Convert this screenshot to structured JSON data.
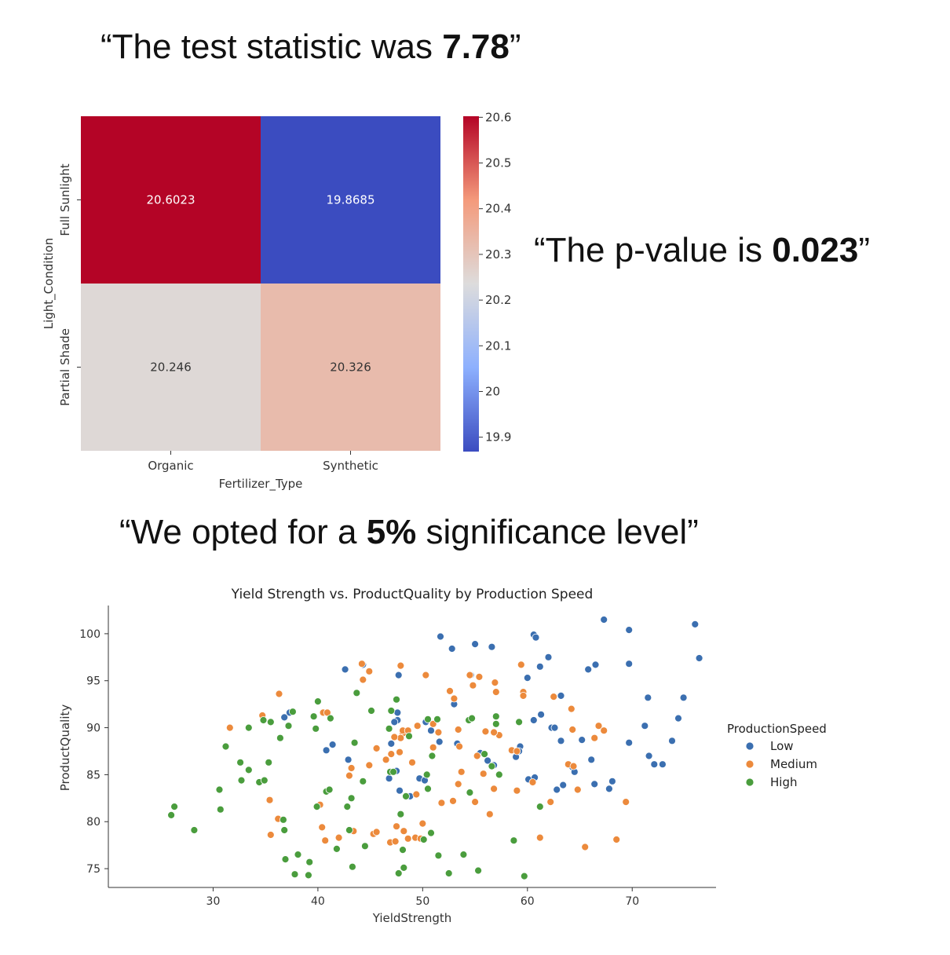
{
  "quotes": {
    "test_statistic": {
      "prefix": "“The test statistic was ",
      "value": "7.78",
      "suffix": "”"
    },
    "p_value": {
      "prefix": "“The p-value is ",
      "value": "0.023",
      "suffix": "”"
    },
    "significance": {
      "prefix": "“We opted for a ",
      "value": "5%",
      "suffix": " significance level”"
    }
  },
  "chart_data": [
    {
      "type": "heatmap",
      "title": "",
      "xlabel": "Fertilizer_Type",
      "ylabel": "Light_Condition",
      "x_categories": [
        "Organic",
        "Synthetic"
      ],
      "y_categories": [
        "Full Sunlight",
        "Partial Shade"
      ],
      "values": [
        [
          20.6023,
          19.8685
        ],
        [
          20.246,
          20.326
        ]
      ],
      "value_labels": [
        [
          "20.6023",
          "19.8685"
        ],
        [
          "20.246",
          "20.326"
        ]
      ],
      "colormap": "coolwarm",
      "colorbar": {
        "vmin": 19.8685,
        "vmax": 20.6023,
        "ticks": [
          19.9,
          20.0,
          20.1,
          20.2,
          20.3,
          20.4,
          20.5,
          20.6
        ]
      }
    },
    {
      "type": "scatter",
      "title": "Yield Strength vs. ProductQuality by Production Speed",
      "xlabel": "YieldStrength",
      "ylabel": "ProductQuality",
      "xlim": [
        20,
        78
      ],
      "ylim": [
        73,
        103
      ],
      "xticks": [
        30,
        40,
        50,
        60,
        70
      ],
      "yticks": [
        75,
        80,
        85,
        90,
        95,
        100
      ],
      "legend": {
        "title": "ProductionSpeed",
        "placement": "right-outside"
      },
      "series": [
        {
          "name": "Low",
          "color": "#3b6fb0",
          "points": [
            [
              42.6,
              96.2
            ],
            [
              44.3,
              96.7
            ],
            [
              47.7,
              95.6
            ],
            [
              51.7,
              99.7
            ],
            [
              52.8,
              98.4
            ],
            [
              54.6,
              95.6
            ],
            [
              55.0,
              98.9
            ],
            [
              56.6,
              98.6
            ],
            [
              60.6,
              99.9
            ],
            [
              60.8,
              99.6
            ],
            [
              61.2,
              96.5
            ],
            [
              62.0,
              97.5
            ],
            [
              60.0,
              95.3
            ],
            [
              65.8,
              96.2
            ],
            [
              66.5,
              96.7
            ],
            [
              67.3,
              101.5
            ],
            [
              69.7,
              100.4
            ],
            [
              69.7,
              96.8
            ],
            [
              76.0,
              101.0
            ],
            [
              76.4,
              97.4
            ],
            [
              71.5,
              93.2
            ],
            [
              74.9,
              93.2
            ],
            [
              74.4,
              91.0
            ],
            [
              71.2,
              90.2
            ],
            [
              73.8,
              88.6
            ],
            [
              69.7,
              88.4
            ],
            [
              71.6,
              87.0
            ],
            [
              72.1,
              86.1
            ],
            [
              72.9,
              86.1
            ],
            [
              66.1,
              86.6
            ],
            [
              68.1,
              84.3
            ],
            [
              67.8,
              83.5
            ],
            [
              66.4,
              84.0
            ],
            [
              64.3,
              85.8
            ],
            [
              64.5,
              85.3
            ],
            [
              63.4,
              83.9
            ],
            [
              62.8,
              83.4
            ],
            [
              63.2,
              93.4
            ],
            [
              61.3,
              91.4
            ],
            [
              60.6,
              90.8
            ],
            [
              62.3,
              90.0
            ],
            [
              62.6,
              90.0
            ],
            [
              63.2,
              88.6
            ],
            [
              65.2,
              88.7
            ],
            [
              59.3,
              88.0
            ],
            [
              58.9,
              86.9
            ],
            [
              59.2,
              87.5
            ],
            [
              56.8,
              86.0
            ],
            [
              56.2,
              86.5
            ],
            [
              55.5,
              87.3
            ],
            [
              60.1,
              84.5
            ],
            [
              60.7,
              84.7
            ],
            [
              53.3,
              88.3
            ],
            [
              51.6,
              88.5
            ],
            [
              50.8,
              89.7
            ],
            [
              50.3,
              90.6
            ],
            [
              53.0,
              92.5
            ],
            [
              47.6,
              91.6
            ],
            [
              47.6,
              90.8
            ],
            [
              47.3,
              90.6
            ],
            [
              47.0,
              88.3
            ],
            [
              46.8,
              84.6
            ],
            [
              47.5,
              85.4
            ],
            [
              47.8,
              83.3
            ],
            [
              48.8,
              82.7
            ],
            [
              49.7,
              84.6
            ],
            [
              50.2,
              84.4
            ],
            [
              42.9,
              86.6
            ],
            [
              40.8,
              87.6
            ],
            [
              41.4,
              88.2
            ],
            [
              36.8,
              91.1
            ],
            [
              37.3,
              91.6
            ]
          ]
        },
        {
          "name": "Medium",
          "color": "#ec8a3c",
          "points": [
            [
              44.2,
              96.8
            ],
            [
              44.3,
              95.1
            ],
            [
              44.9,
              96.0
            ],
            [
              47.9,
              96.6
            ],
            [
              50.3,
              95.6
            ],
            [
              52.6,
              93.9
            ],
            [
              53.0,
              93.1
            ],
            [
              54.5,
              95.6
            ],
            [
              54.8,
              94.5
            ],
            [
              55.4,
              95.4
            ],
            [
              56.9,
              94.8
            ],
            [
              57.0,
              93.8
            ],
            [
              59.4,
              96.7
            ],
            [
              59.6,
              93.8
            ],
            [
              59.6,
              93.4
            ],
            [
              62.5,
              93.3
            ],
            [
              64.2,
              92.0
            ],
            [
              64.3,
              89.8
            ],
            [
              66.4,
              88.9
            ],
            [
              66.8,
              90.2
            ],
            [
              67.3,
              89.7
            ],
            [
              58.5,
              87.6
            ],
            [
              59.0,
              87.5
            ],
            [
              57.3,
              89.2
            ],
            [
              56.8,
              89.5
            ],
            [
              56.0,
              89.6
            ],
            [
              55.2,
              87.0
            ],
            [
              53.5,
              88.0
            ],
            [
              53.4,
              89.8
            ],
            [
              51.5,
              89.5
            ],
            [
              51.0,
              90.4
            ],
            [
              51.0,
              87.9
            ],
            [
              49.5,
              90.2
            ],
            [
              48.1,
              89.4
            ],
            [
              48.1,
              89.7
            ],
            [
              47.9,
              88.9
            ],
            [
              48.6,
              89.7
            ],
            [
              47.3,
              89.0
            ],
            [
              47.8,
              87.4
            ],
            [
              47.0,
              87.2
            ],
            [
              46.5,
              86.6
            ],
            [
              45.6,
              87.8
            ],
            [
              44.9,
              86.0
            ],
            [
              43.2,
              85.7
            ],
            [
              43.0,
              84.9
            ],
            [
              40.5,
              91.6
            ],
            [
              40.9,
              91.6
            ],
            [
              40.2,
              81.8
            ],
            [
              40.4,
              79.4
            ],
            [
              40.7,
              78.0
            ],
            [
              42.0,
              78.3
            ],
            [
              43.4,
              79.0
            ],
            [
              45.3,
              78.7
            ],
            [
              45.6,
              78.9
            ],
            [
              46.9,
              77.8
            ],
            [
              47.4,
              77.9
            ],
            [
              47.5,
              79.5
            ],
            [
              48.2,
              79.0
            ],
            [
              48.6,
              78.2
            ],
            [
              49.3,
              78.3
            ],
            [
              49.8,
              78.2
            ],
            [
              50.0,
              79.8
            ],
            [
              49.4,
              82.9
            ],
            [
              49.0,
              86.3
            ],
            [
              51.8,
              82.0
            ],
            [
              52.9,
              82.2
            ],
            [
              53.4,
              84.0
            ],
            [
              53.7,
              85.3
            ],
            [
              55.0,
              82.1
            ],
            [
              55.8,
              85.1
            ],
            [
              56.4,
              80.8
            ],
            [
              56.8,
              83.5
            ],
            [
              59.0,
              83.3
            ],
            [
              60.5,
              84.2
            ],
            [
              61.2,
              78.3
            ],
            [
              62.2,
              82.1
            ],
            [
              63.9,
              86.1
            ],
            [
              64.4,
              85.9
            ],
            [
              64.8,
              83.4
            ],
            [
              65.5,
              77.3
            ],
            [
              68.5,
              78.1
            ],
            [
              69.4,
              82.1
            ],
            [
              35.4,
              82.3
            ],
            [
              35.5,
              78.6
            ],
            [
              36.2,
              80.3
            ],
            [
              34.7,
              91.3
            ],
            [
              36.3,
              93.6
            ],
            [
              31.6,
              90.0
            ]
          ]
        },
        {
          "name": "High",
          "color": "#4a9d3d",
          "points": [
            [
              26.0,
              80.7
            ],
            [
              26.3,
              81.6
            ],
            [
              28.2,
              79.1
            ],
            [
              30.6,
              83.4
            ],
            [
              30.7,
              81.3
            ],
            [
              31.2,
              88.0
            ],
            [
              32.6,
              86.3
            ],
            [
              32.7,
              84.4
            ],
            [
              33.4,
              90.0
            ],
            [
              33.4,
              85.5
            ],
            [
              34.4,
              84.2
            ],
            [
              34.9,
              84.4
            ],
            [
              34.8,
              90.8
            ],
            [
              35.3,
              86.3
            ],
            [
              35.5,
              90.6
            ],
            [
              36.4,
              88.9
            ],
            [
              36.7,
              80.2
            ],
            [
              36.8,
              79.1
            ],
            [
              37.2,
              90.2
            ],
            [
              37.6,
              91.7
            ],
            [
              36.9,
              76.0
            ],
            [
              38.1,
              76.5
            ],
            [
              37.8,
              74.4
            ],
            [
              39.1,
              74.3
            ],
            [
              39.2,
              75.7
            ],
            [
              39.6,
              91.2
            ],
            [
              39.8,
              89.9
            ],
            [
              40.0,
              92.8
            ],
            [
              39.9,
              81.6
            ],
            [
              40.8,
              83.2
            ],
            [
              41.1,
              83.4
            ],
            [
              41.2,
              91.0
            ],
            [
              41.8,
              77.1
            ],
            [
              42.8,
              81.6
            ],
            [
              43.0,
              79.1
            ],
            [
              43.2,
              82.5
            ],
            [
              43.3,
              75.2
            ],
            [
              43.5,
              88.4
            ],
            [
              43.7,
              93.7
            ],
            [
              44.3,
              84.3
            ],
            [
              44.5,
              77.4
            ],
            [
              45.1,
              91.8
            ],
            [
              46.8,
              89.9
            ],
            [
              46.9,
              85.3
            ],
            [
              47.0,
              91.8
            ],
            [
              47.2,
              85.3
            ],
            [
              47.5,
              93.0
            ],
            [
              47.7,
              74.5
            ],
            [
              47.9,
              80.8
            ],
            [
              48.1,
              77.0
            ],
            [
              48.2,
              75.1
            ],
            [
              48.4,
              82.7
            ],
            [
              48.7,
              89.1
            ],
            [
              50.1,
              78.1
            ],
            [
              50.4,
              85.0
            ],
            [
              50.5,
              90.9
            ],
            [
              50.5,
              83.5
            ],
            [
              50.8,
              78.8
            ],
            [
              50.9,
              87.0
            ],
            [
              51.4,
              90.9
            ],
            [
              51.5,
              76.4
            ],
            [
              52.5,
              74.5
            ],
            [
              53.9,
              76.5
            ],
            [
              54.4,
              90.8
            ],
            [
              54.5,
              83.1
            ],
            [
              54.7,
              91.0
            ],
            [
              55.3,
              74.8
            ],
            [
              55.9,
              87.2
            ],
            [
              56.6,
              85.9
            ],
            [
              57.0,
              91.2
            ],
            [
              57.0,
              90.4
            ],
            [
              57.3,
              85.0
            ],
            [
              58.7,
              78.0
            ],
            [
              59.2,
              90.6
            ],
            [
              59.7,
              74.2
            ],
            [
              61.2,
              81.6
            ]
          ]
        }
      ]
    }
  ]
}
